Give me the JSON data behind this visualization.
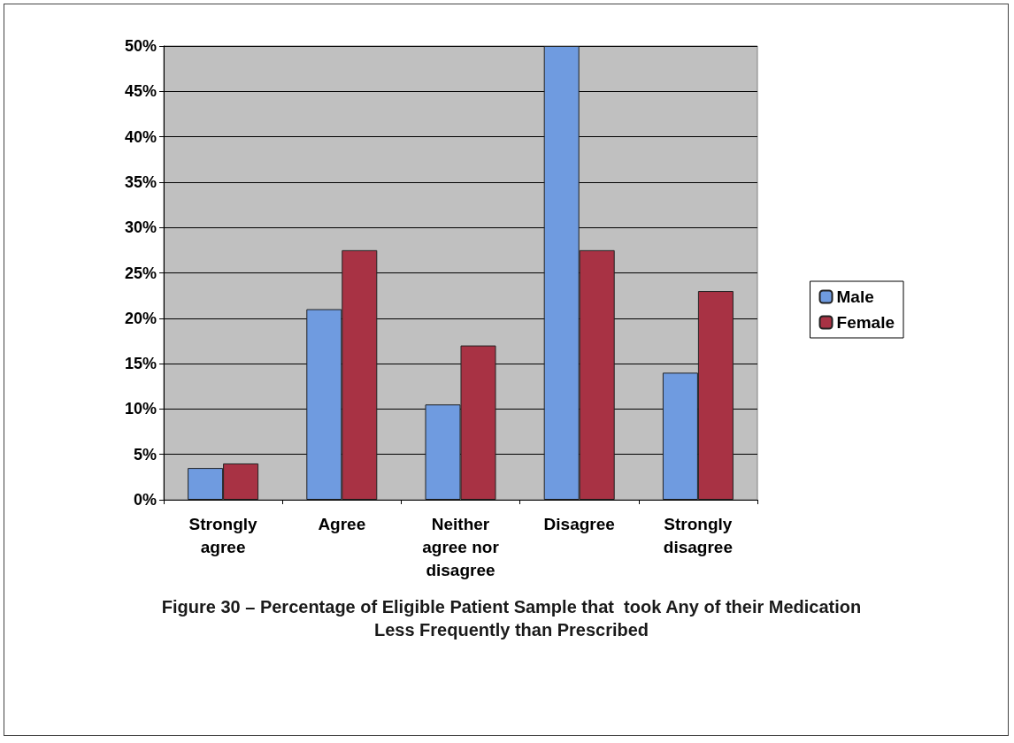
{
  "chart_data": {
    "type": "bar",
    "title": "Figure 30 – Percentage of Eligible Patient Sample that  took Any of their Medication\nLess Frequently than Prescribed",
    "categories": [
      "Strongly\nagree",
      "Agree",
      "Neither\nagree nor\ndisagree",
      "Disagree",
      "Strongly\ndisagree"
    ],
    "series": [
      {
        "name": "Male",
        "color": "#6f9be0",
        "values": [
          3.5,
          21,
          10.5,
          50,
          14
        ]
      },
      {
        "name": "Female",
        "color": "#a83244",
        "values": [
          4,
          27.5,
          17,
          27.5,
          23
        ]
      }
    ],
    "ylim": [
      0,
      50
    ],
    "yticks": [
      {
        "value": 0,
        "label": "0%"
      },
      {
        "value": 5,
        "label": "5%"
      },
      {
        "value": 10,
        "label": "10%"
      },
      {
        "value": 15,
        "label": "15%"
      },
      {
        "value": 20,
        "label": "20%"
      },
      {
        "value": 25,
        "label": "25%"
      },
      {
        "value": 30,
        "label": "30%"
      },
      {
        "value": 35,
        "label": "35%"
      },
      {
        "value": 40,
        "label": "40%"
      },
      {
        "value": 45,
        "label": "45%"
      },
      {
        "value": 50,
        "label": "50%"
      }
    ],
    "grid": "y",
    "legend": "right"
  }
}
